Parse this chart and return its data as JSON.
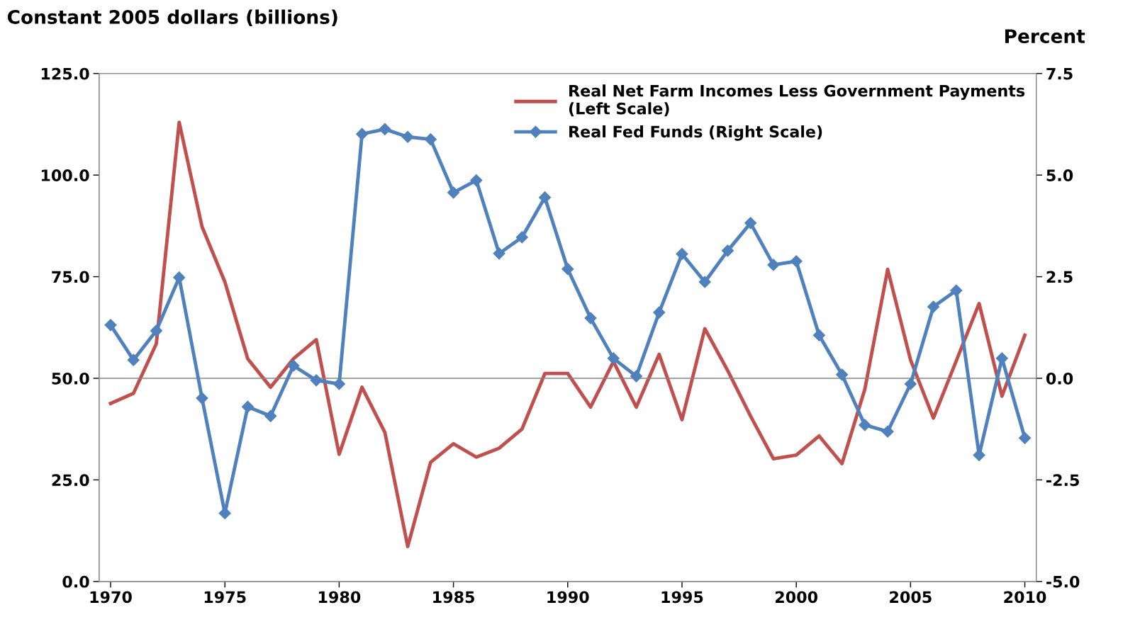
{
  "chart_data": {
    "type": "line",
    "ylabel": "Constant 2005 dollars (billions)",
    "y2label": "Percent",
    "x": [
      1970,
      1971,
      1972,
      1973,
      1974,
      1975,
      1976,
      1977,
      1978,
      1979,
      1980,
      1981,
      1982,
      1983,
      1984,
      1985,
      1986,
      1987,
      1988,
      1989,
      1990,
      1991,
      1992,
      1993,
      1994,
      1995,
      1996,
      1997,
      1998,
      1999,
      2000,
      2001,
      2002,
      2003,
      2004,
      2005,
      2006,
      2007,
      2008,
      2009,
      2010
    ],
    "series": [
      {
        "name": "Real Net Farm Incomes Less Government Payments\n(Left Scale)",
        "color": "#c0504d",
        "marker": "none",
        "values": [
          43.8,
          46.3,
          58.5,
          113,
          87.3,
          73.7,
          54.8,
          47.8,
          54.8,
          59.5,
          31.3,
          47.8,
          36.7,
          8.6,
          29.3,
          33.9,
          30.6,
          32.8,
          37.5,
          51.2,
          51.2,
          42.9,
          54.1,
          42.9,
          55.9,
          39.8,
          62.2,
          51.9,
          40.7,
          30.2,
          31.1,
          35.8,
          29.0,
          47.3,
          76.8,
          54.5,
          40.2,
          54.3,
          68.4,
          45.6,
          60.6
        ]
      },
      {
        "name": "Real Fed Funds (Right Scale)",
        "color": "#4f81bd",
        "marker": "diamond",
        "axis": "y2",
        "values": [
          1.31,
          0.45,
          1.17,
          2.48,
          -0.49,
          -3.32,
          -0.7,
          -0.93,
          0.31,
          -0.05,
          -0.14,
          6.01,
          6.13,
          5.94,
          5.88,
          4.57,
          4.87,
          3.07,
          3.47,
          4.45,
          2.69,
          1.48,
          0.49,
          0.05,
          1.62,
          3.06,
          2.37,
          3.14,
          3.82,
          2.79,
          2.88,
          1.06,
          0.09,
          -1.15,
          -1.31,
          -0.14,
          1.76,
          2.16,
          -1.89,
          0.49,
          -1.47
        ]
      }
    ],
    "xlim": [
      1969.5,
      2010.5
    ],
    "xticks": [
      1970,
      1975,
      1980,
      1985,
      1990,
      1995,
      2000,
      2005,
      2010
    ],
    "ylim": [
      0,
      125
    ],
    "yticks": [
      {
        "value": 0,
        "label": "0.0"
      },
      {
        "value": 25,
        "label": "25.0"
      },
      {
        "value": 50,
        "label": "50.0"
      },
      {
        "value": 75,
        "label": "75.0"
      },
      {
        "value": 100,
        "label": "100.0"
      },
      {
        "value": 125,
        "label": "125.0"
      }
    ],
    "y2lim": [
      -5,
      7.5
    ],
    "y2ticks": [
      {
        "value": -5,
        "label": "-5.0"
      },
      {
        "value": -2.5,
        "label": "-2.5"
      },
      {
        "value": 0,
        "label": "0.0"
      },
      {
        "value": 2.5,
        "label": "2.5"
      },
      {
        "value": 5,
        "label": "5.0"
      },
      {
        "value": 7.5,
        "label": "7.5"
      }
    ],
    "ref_lines": [
      {
        "axis": "y2",
        "value": 0,
        "label": null,
        "color": "#868686"
      }
    ],
    "legend": "top right",
    "grid": false,
    "line_style": "solid"
  }
}
